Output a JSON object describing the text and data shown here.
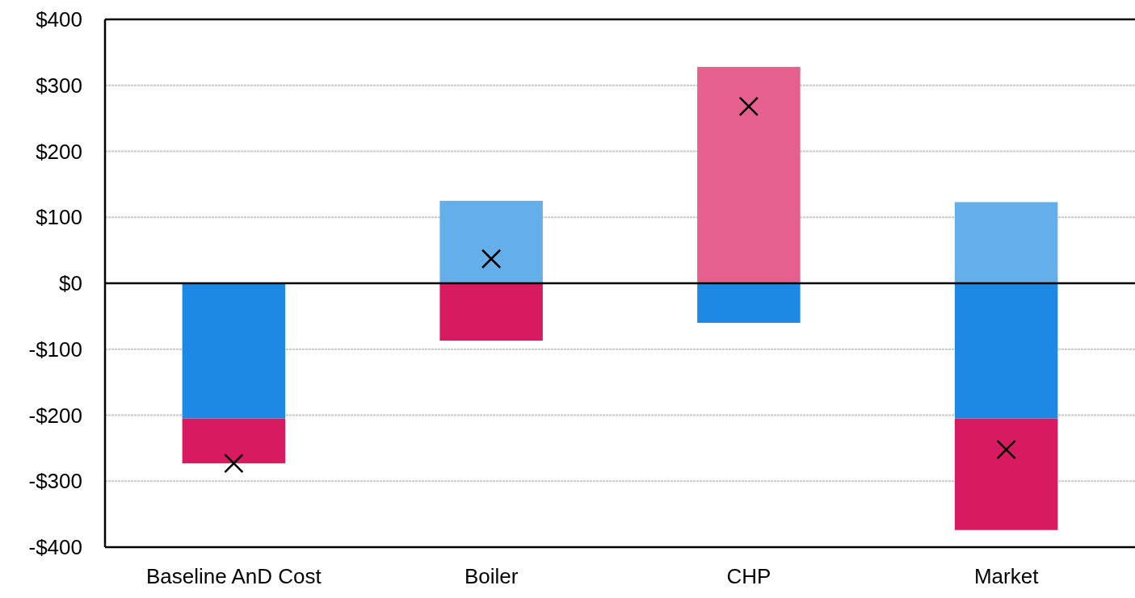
{
  "chart_data": {
    "type": "bar",
    "stacked": true,
    "categories": [
      "Baseline AnD Cost",
      "Boiler",
      "CHP",
      "Market"
    ],
    "ylim": [
      -400,
      400
    ],
    "yticks": [
      {
        "value": -400,
        "label": "-$400"
      },
      {
        "value": -300,
        "label": "-$300"
      },
      {
        "value": -200,
        "label": "-$200"
      },
      {
        "value": -100,
        "label": "-$100"
      },
      {
        "value": 0,
        "label": "$0"
      },
      {
        "value": 100,
        "label": "$100"
      },
      {
        "value": 200,
        "label": "$200"
      },
      {
        "value": 300,
        "label": "$300"
      },
      {
        "value": 400,
        "label": "$400"
      }
    ],
    "grid": "y",
    "series": [
      {
        "color": "#1e88e5",
        "values": [
          -205,
          null,
          -60,
          -205
        ]
      },
      {
        "color": "#d81b60",
        "values": [
          -68,
          -87,
          null,
          -169
        ]
      },
      {
        "color": "#64aee9",
        "values": [
          null,
          125,
          null,
          123
        ]
      },
      {
        "color": "#e5608f",
        "values": [
          null,
          null,
          328,
          null
        ]
      },
      {
        "type": "scatter",
        "marker": "cross",
        "color": "#000000",
        "x": [
          "Baseline AnD Cost",
          "Boiler",
          "CHP",
          "Market"
        ],
        "values": [
          -273,
          37,
          268,
          -252
        ]
      }
    ]
  }
}
